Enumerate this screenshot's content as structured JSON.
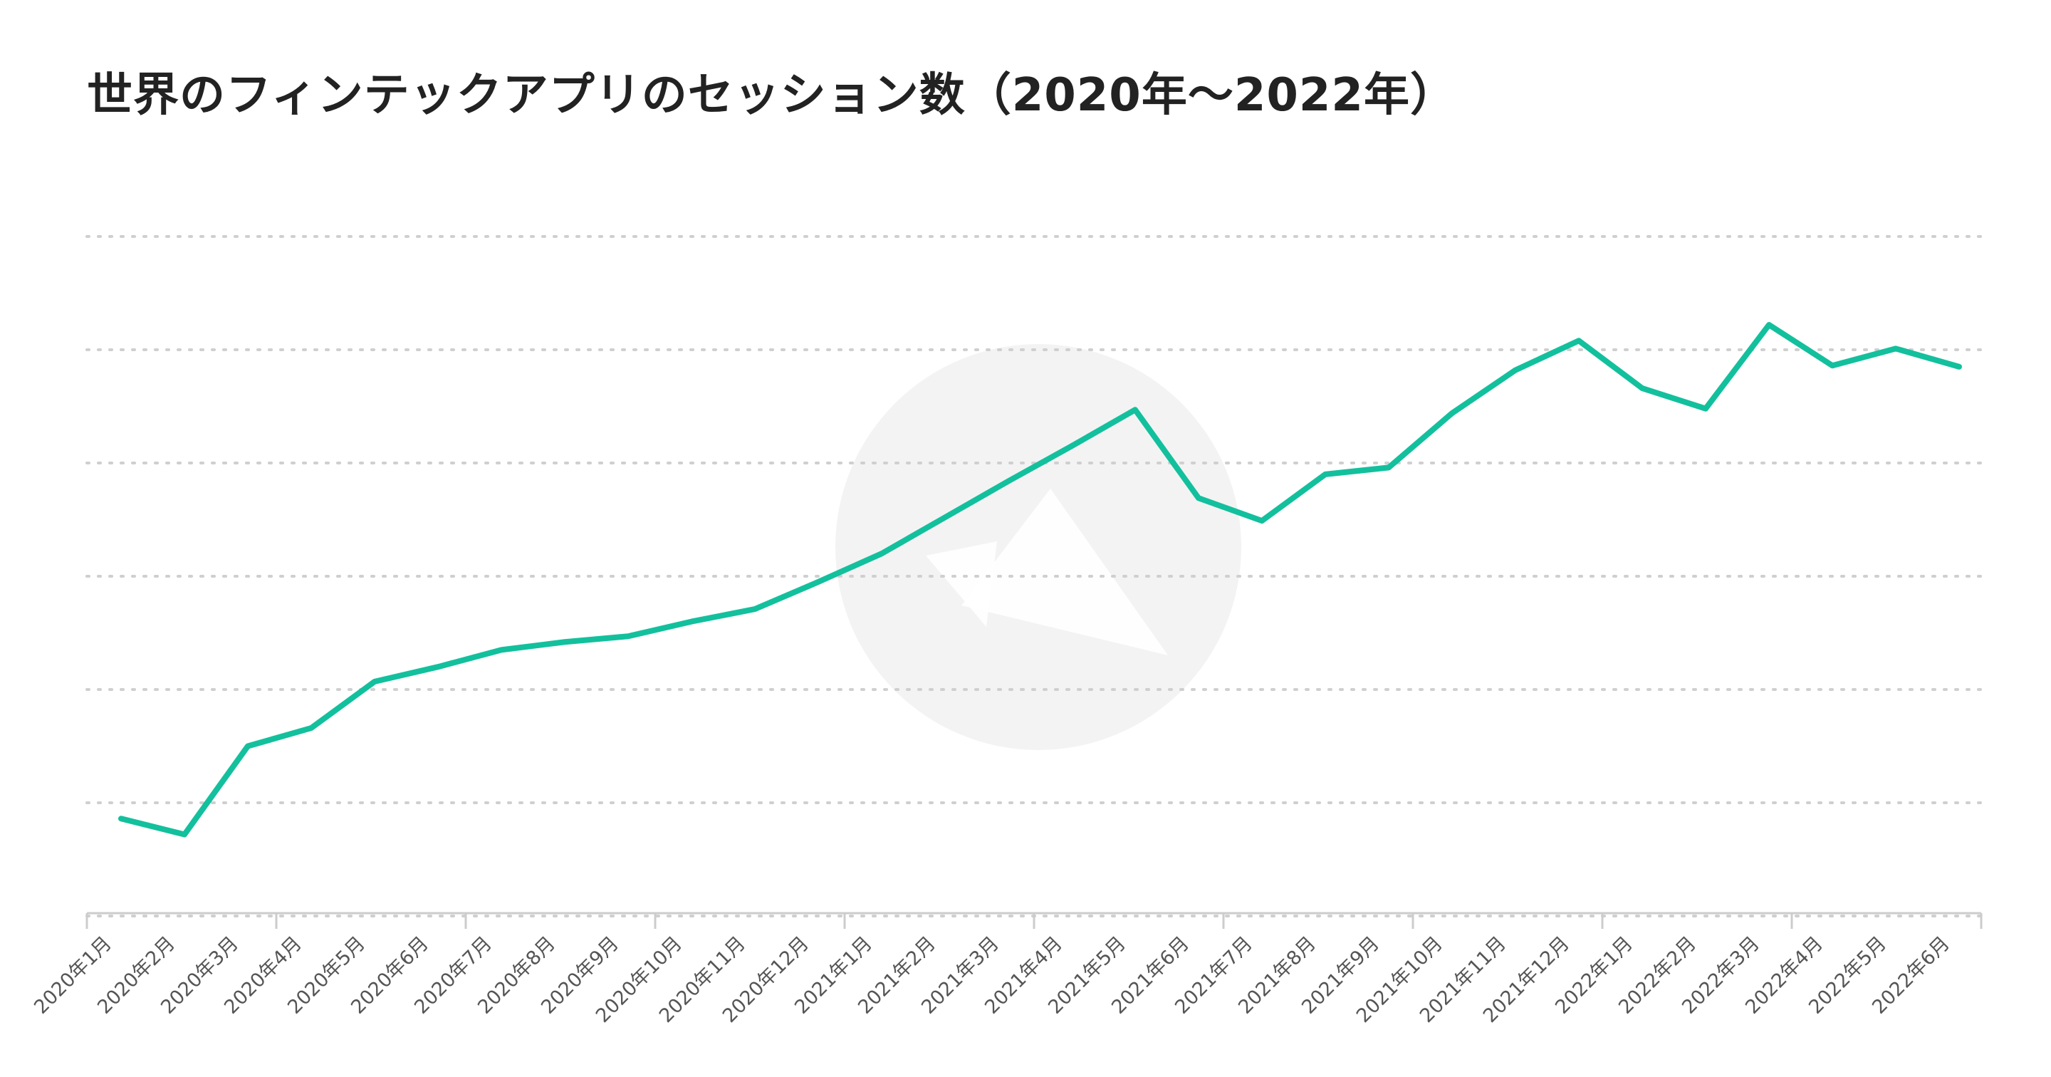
{
  "chart_data": {
    "type": "line",
    "title": "世界のフィンテックアプリのセッション数（2020年〜2022年）",
    "xlabel": "",
    "ylabel": "",
    "x": [
      "2020年1月",
      "2020年2月",
      "2020年3月",
      "2020年4月",
      "2020年5月",
      "2020年6月",
      "2020年7月",
      "2020年8月",
      "2020年9月",
      "2020年10月",
      "2020年11月",
      "2020年12月",
      "2021年1月",
      "2021年2月",
      "2021年3月",
      "2021年4月",
      "2021年5月",
      "2021年6月",
      "2021年7月",
      "2021年8月",
      "2021年9月",
      "2021年10月",
      "2021年11月",
      "2021年12月",
      "2022年1月",
      "2022年2月",
      "2022年3月",
      "2022年4月",
      "2022年5月",
      "2022年6月"
    ],
    "series": [
      {
        "values": [
          0.86,
          0.72,
          1.5,
          1.66,
          2.07,
          2.2,
          2.35,
          2.42,
          2.47,
          2.6,
          2.71,
          2.95,
          3.2,
          3.52,
          3.84,
          4.15,
          4.47,
          3.69,
          3.49,
          3.9,
          3.96,
          4.44,
          4.82,
          5.08,
          4.66,
          4.48,
          5.22,
          4.86,
          5.01,
          4.85
        ]
      }
    ],
    "ylim": [
      -1,
      7
    ],
    "gridlines": [
      0,
      1,
      2,
      3,
      4,
      5,
      6
    ],
    "grid": true,
    "y_tick_labels_visible": false,
    "legend": "none",
    "line_color": "#13c09d",
    "grid_color": "#cfcfcf",
    "axis_color": "#cccccc",
    "watermark_icon": "brand-logo-icon"
  }
}
